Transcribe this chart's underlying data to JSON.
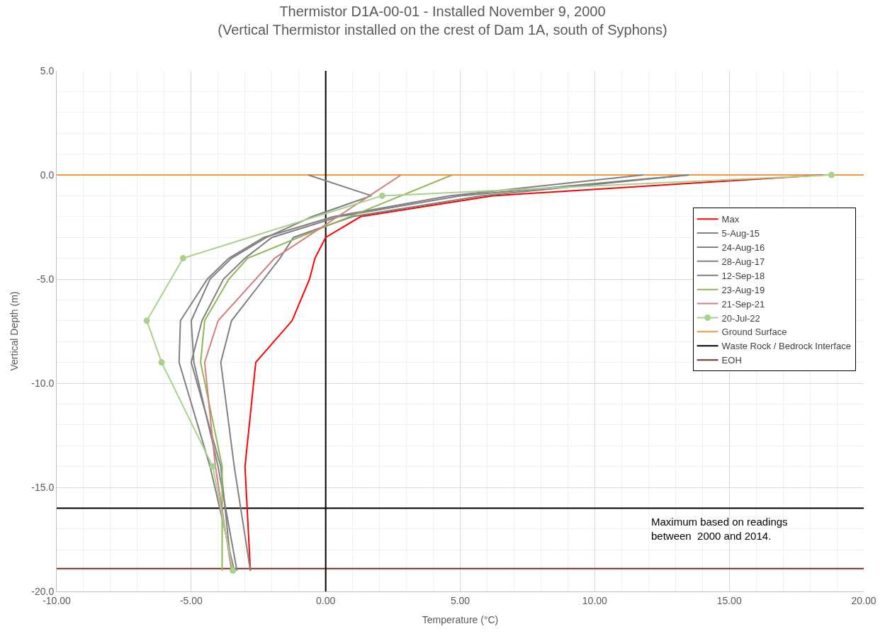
{
  "chart_data": {
    "type": "line",
    "title": "Thermistor D1A-00-01 - Installed November 9, 2000\n(Vertical Thermistor installed on the crest of Dam 1A, south of Syphons)",
    "xlabel": "Temperature (°C)",
    "ylabel": "Vertical Depth (m)",
    "xlim": [
      -10,
      20
    ],
    "xticks": [
      {
        "value": -10,
        "label": "-10.00"
      },
      {
        "value": -5,
        "label": "-5.00"
      },
      {
        "value": 0,
        "label": "0.00"
      },
      {
        "value": 5,
        "label": "5.00"
      },
      {
        "value": 10,
        "label": "10.00"
      },
      {
        "value": 15,
        "label": "15.00"
      },
      {
        "value": 20,
        "label": "20.00"
      }
    ],
    "ylim": [
      -20,
      5
    ],
    "yticks": [
      {
        "value": -20,
        "label": "-20.0"
      },
      {
        "value": -15,
        "label": "-15.0"
      },
      {
        "value": -10,
        "label": "-10.0"
      },
      {
        "value": -5,
        "label": "-5.0"
      },
      {
        "value": 0,
        "label": "0.0"
      },
      {
        "value": 5,
        "label": "5.0"
      }
    ],
    "grid": true,
    "legend": "right",
    "marker": "none",
    "line_style": "solid",
    "series": [
      {
        "name": "Max",
        "color": "#ff0000",
        "x": [
          18.5,
          6.2,
          1.3,
          0.0,
          -0.4,
          -0.6,
          -1.25,
          -2.6,
          -3.0,
          -2.8
        ],
        "values": [
          0,
          -1,
          -2,
          -3,
          -4,
          -5,
          -7,
          -9,
          -14,
          -19
        ]
      },
      {
        "name": "5-Aug-15",
        "color": "#808080",
        "x": [
          13.5,
          5.8,
          1.0,
          -1.2,
          -1.7,
          -2.3,
          -3.5,
          -3.9,
          -3.4,
          -2.8
        ],
        "values": [
          0,
          -1,
          -2,
          -3,
          -4,
          -5,
          -7,
          -9,
          -14,
          -19
        ]
      },
      {
        "name": "24-Aug-16",
        "color": "#808080",
        "x": [
          11.8,
          4.6,
          0.3,
          -2.3,
          -3.6,
          -4.4,
          -5.4,
          -5.45,
          -4.3,
          -3.4
        ],
        "values": [
          0,
          -1,
          -2,
          -3,
          -4,
          -5,
          -7,
          -9,
          -14,
          -19
        ]
      },
      {
        "name": "28-Aug-17",
        "color": "#808080",
        "x": [
          -0.65,
          1.7,
          -0.5,
          -2.2,
          -3.5,
          -4.3,
          -5.0,
          -4.9,
          -4.0,
          -3.3
        ],
        "values": [
          0,
          -1,
          -2,
          -3,
          -4,
          -5,
          -7,
          -9,
          -14,
          -19
        ]
      },
      {
        "name": "12-Sep-18",
        "color": "#808080",
        "x": [
          13.5,
          5.0,
          0.5,
          -2.0,
          -3.0,
          -3.8,
          -4.6,
          -5.0,
          -3.9,
          -3.5
        ],
        "values": [
          0,
          -1,
          -2,
          -3,
          -4,
          -5,
          -7,
          -9,
          -14,
          -19
        ]
      },
      {
        "name": "23-Aug-19",
        "color": "#8db654",
        "x": [
          4.7,
          -2.9,
          -3.6,
          -4.5,
          -4.65,
          -3.85,
          -3.85
        ],
        "values": [
          0,
          -4,
          -5,
          -7,
          -9,
          -14,
          -19
        ]
      },
      {
        "name": "21-Sep-21",
        "color": "#d47f7f",
        "x": [
          2.8,
          -1.9,
          -4.0,
          -4.5,
          -4.1,
          -3.5
        ],
        "values": [
          0,
          -4,
          -7,
          -9,
          -14,
          -19
        ]
      },
      {
        "name": "20-Jul-22",
        "color": "#a9d18e",
        "marker": "circle",
        "x": [
          18.8,
          2.1,
          -5.3,
          -6.65,
          -6.1,
          -4.2,
          -3.45
        ],
        "values": [
          0,
          -1,
          -4,
          -7,
          -9,
          -14,
          -19
        ]
      }
    ],
    "ref_lines": [
      {
        "axis": "y",
        "value": 0,
        "label": "Ground Surface",
        "color": "#f79646"
      },
      {
        "axis": "y",
        "value": -16,
        "label": "Waste Rock / Bedrock Interface",
        "color": "#000000"
      },
      {
        "axis": "y",
        "value": -18.9,
        "label": "EOH",
        "color": "#7b2c2c"
      },
      {
        "axis": "x",
        "value": 0,
        "label": null,
        "color": "#000000"
      }
    ],
    "annotations": [
      "Maximum based on readings\nbetween  2000 and 2014."
    ]
  }
}
